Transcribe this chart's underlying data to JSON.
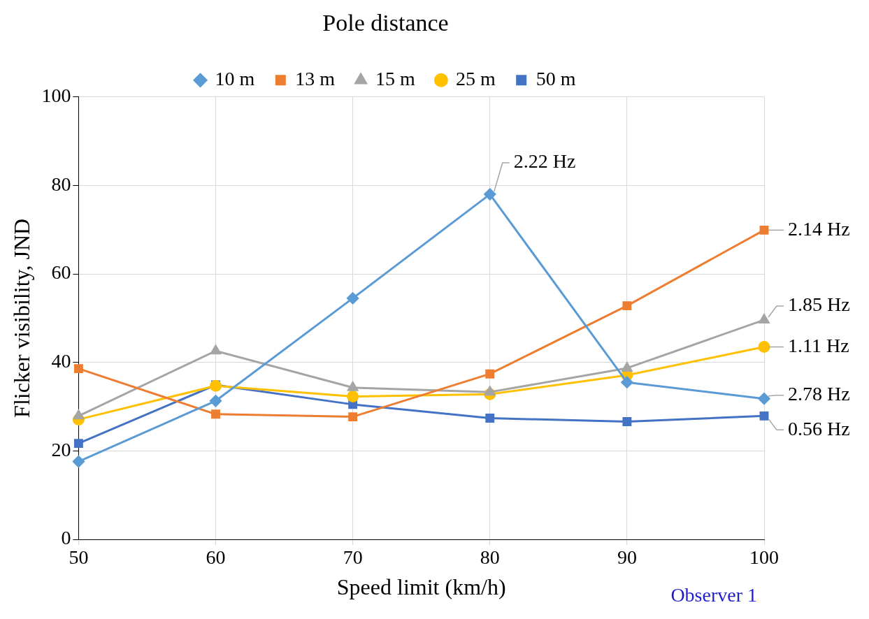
{
  "chart_data": {
    "type": "line",
    "title": "Pole distance",
    "xlabel": "Speed limit (km/h)",
    "ylabel": "Flicker visibility, JND",
    "categories": [
      "50",
      "60",
      "70",
      "80",
      "90",
      "100"
    ],
    "ylim": [
      0,
      100
    ],
    "yticks": [
      0,
      20,
      40,
      60,
      80,
      100
    ],
    "grid": true,
    "legend": "top",
    "series": [
      {
        "name": "10 m",
        "color": "#5b9bd5",
        "marker": "diamond",
        "values": [
          17.6,
          31.3,
          54.5,
          78.0,
          35.5,
          31.8
        ]
      },
      {
        "name": "13 m",
        "color": "#ed7d31",
        "marker": "square",
        "values": [
          38.6,
          28.3,
          27.7,
          37.4,
          52.8,
          69.9
        ]
      },
      {
        "name": "15 m",
        "color": "#a5a5a5",
        "marker": "triangle",
        "values": [
          27.9,
          42.6,
          34.3,
          33.3,
          38.7,
          49.6
        ]
      },
      {
        "name": "25 m",
        "color": "#ffc000",
        "marker": "circle",
        "values": [
          27.1,
          34.7,
          32.3,
          32.8,
          37.1,
          43.5
        ]
      },
      {
        "name": "50 m",
        "color": "#4472c4",
        "marker": "square",
        "values": [
          21.7,
          34.9,
          30.5,
          27.4,
          26.6,
          27.9
        ]
      }
    ],
    "annotations": [
      {
        "text": "2.22 Hz",
        "x": "80",
        "y": 78.0
      },
      {
        "text": "2.14 Hz",
        "x": "100",
        "y": 69.9
      },
      {
        "text": "1.85 Hz",
        "x": "100",
        "y": 49.6
      },
      {
        "text": "1.11 Hz",
        "x": "100",
        "y": 43.5
      },
      {
        "text": "2.78 Hz",
        "x": "100",
        "y": 31.8
      },
      {
        "text": "0.56 Hz",
        "x": "100",
        "y": 27.9
      },
      "Observer 1"
    ]
  }
}
